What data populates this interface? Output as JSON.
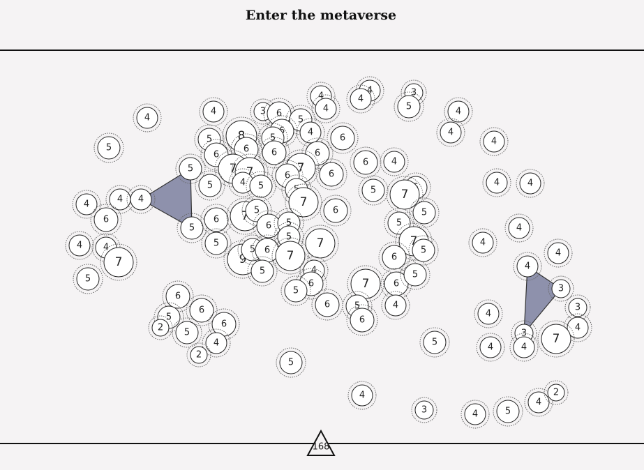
{
  "header": {
    "title": "Enter the metaverse"
  },
  "nodes": [
    "4",
    "4",
    "5",
    "3",
    "6",
    "4",
    "4",
    "4",
    "4",
    "3",
    "5",
    "4",
    "4",
    "4",
    "5",
    "6",
    "4",
    "6",
    "5",
    "8",
    "5",
    "6",
    "6",
    "6",
    "6",
    "6",
    "4",
    "5",
    "7",
    "7",
    "7",
    "6",
    "6",
    "5",
    "4",
    "5",
    "5",
    "7",
    "5",
    "5",
    "7",
    "4",
    "4",
    "4",
    "4",
    "4",
    "6",
    "5",
    "6",
    "7",
    "5",
    "6",
    "5",
    "6",
    "5",
    "5",
    "4",
    "4",
    "4",
    "7",
    "5",
    "9",
    "5",
    "6",
    "5",
    "7",
    "7",
    "7",
    "5",
    "6",
    "4",
    "4",
    "5",
    "5",
    "4",
    "6",
    "5",
    "7",
    "6",
    "5",
    "4",
    "3",
    "6",
    "5",
    "6",
    "2",
    "5",
    "6",
    "4",
    "2",
    "6",
    "5",
    "6",
    "4",
    "4",
    "3",
    "4",
    "5",
    "4",
    "3",
    "4",
    "7",
    "5",
    "4",
    "3",
    "4",
    "5",
    "4",
    "2"
  ],
  "footer": {
    "counter": "168"
  }
}
